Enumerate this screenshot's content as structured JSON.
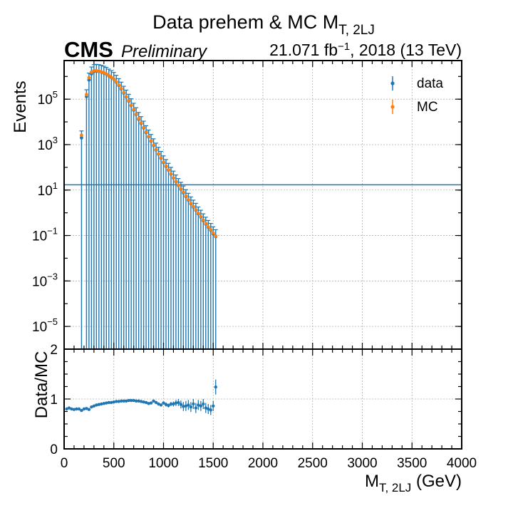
{
  "header": {
    "title_main": "Data prehem & MC M",
    "title_sub": "T, 2LJ",
    "experiment": "CMS",
    "status": "Preliminary",
    "lumi_value": "21.071 fb",
    "lumi_exp": "−1",
    "lumi_rest": ", 2018 (13 TeV)"
  },
  "axes": {
    "xlabel_main": "M",
    "xlabel_sub": "T, 2LJ",
    "xlabel_unit": " (GeV)",
    "ylabel_top": "Events",
    "ylabel_bottom": "Data/MC"
  },
  "legend": {
    "placement": "top-right",
    "entries": [
      {
        "label": "data",
        "color": "#1f77b4"
      },
      {
        "label": "MC",
        "color": "#ff7f0e"
      }
    ]
  },
  "colors": {
    "data": "#1f77b4",
    "mc": "#ff7f0e",
    "grid": "#b0b0b0"
  },
  "chart_data": [
    {
      "type": "scatter",
      "yscale": "log",
      "xlim": [
        0,
        4000
      ],
      "ylim": [
        1e-06,
        5000000
      ],
      "grid": true,
      "ylabel": "Events",
      "hline": 17,
      "x_ticks": [
        0,
        500,
        1000,
        1500,
        2000,
        2500,
        3000,
        3500,
        4000
      ],
      "y_ticks": [
        {
          "value": 100000,
          "base": "10",
          "exp": "5"
        },
        {
          "value": 1000,
          "base": "10",
          "exp": "3"
        },
        {
          "value": 10,
          "base": "10",
          "exp": "1"
        },
        {
          "value": 0.1,
          "base": "10",
          "exp": "−1"
        },
        {
          "value": 0.001,
          "base": "10",
          "exp": "−3"
        },
        {
          "value": 1e-05,
          "base": "10",
          "exp": "−5"
        }
      ],
      "series": [
        {
          "name": "data",
          "color": "#1f77b4",
          "points": [
            [
              175,
              2000,
              2000,
              2000
            ],
            [
              225,
              130000,
              130000,
              130000
            ],
            [
              250,
              700000,
              700000,
              700000
            ],
            [
              275,
              1300000,
              1300000,
              1300000
            ],
            [
              300,
              1650000,
              1650000,
              1650000
            ],
            [
              325,
              1700000,
              1700000,
              1700000
            ],
            [
              350,
              1650000,
              1650000,
              1650000
            ],
            [
              375,
              1550000,
              1550000,
              1550000
            ],
            [
              400,
              1400000,
              1400000,
              1400000
            ],
            [
              425,
              1250000,
              1250000,
              1250000
            ],
            [
              450,
              1050000,
              1050000,
              1050000
            ],
            [
              475,
              900000,
              900000,
              900000
            ],
            [
              500,
              750000,
              750000,
              750000
            ],
            [
              525,
              560000,
              560000,
              560000
            ],
            [
              550,
              400000,
              400000,
              400000
            ],
            [
              575,
              280000,
              280000,
              280000
            ],
            [
              600,
              185000,
              185000,
              185000
            ],
            [
              625,
              125000,
              125000,
              125000
            ],
            [
              650,
              82000,
              82000,
              82000
            ],
            [
              675,
              52000,
              52000,
              52000
            ],
            [
              700,
              33000,
              33000,
              33000
            ],
            [
              725,
              21000,
              21000,
              21000
            ],
            [
              750,
              13000,
              13000,
              13000
            ],
            [
              775,
              8500,
              8500,
              8500
            ],
            [
              800,
              5400,
              5400,
              5400
            ],
            [
              825,
              3400,
              3400,
              3400
            ],
            [
              850,
              2200,
              2200,
              2200
            ],
            [
              875,
              1400,
              1400,
              1400
            ],
            [
              900,
              900,
              900,
              900
            ],
            [
              925,
              580,
              580,
              580
            ],
            [
              950,
              380,
              380,
              380
            ],
            [
              975,
              250,
              250,
              250
            ],
            [
              1000,
              160,
              160,
              160
            ],
            [
              1025,
              110,
              110,
              110
            ],
            [
              1050,
              75,
              75,
              75
            ],
            [
              1075,
              50,
              50,
              50
            ],
            [
              1100,
              34,
              34,
              34
            ],
            [
              1125,
              23,
              23,
              23
            ],
            [
              1150,
              16,
              16,
              16
            ],
            [
              1175,
              11,
              11,
              11
            ],
            [
              1200,
              7.5,
              7.5,
              7.5
            ],
            [
              1225,
              5.2,
              5.2,
              5.2
            ],
            [
              1250,
              3.6,
              3.6,
              3.6
            ],
            [
              1275,
              2.5,
              2.5,
              2.5
            ],
            [
              1300,
              1.8,
              1.8,
              1.8
            ],
            [
              1325,
              1.3,
              1.3,
              1.3
            ],
            [
              1350,
              0.9,
              0.9,
              0.9
            ],
            [
              1375,
              0.65,
              0.65,
              0.65
            ],
            [
              1400,
              0.45,
              0.45,
              0.45
            ],
            [
              1425,
              0.32,
              0.32,
              0.32
            ],
            [
              1450,
              0.23,
              0.23,
              0.23
            ],
            [
              1475,
              0.17,
              0.17,
              0.17
            ],
            [
              1500,
              0.12,
              0.12,
              0.12
            ],
            [
              1525,
              0.09,
              0.09,
              0.09
            ]
          ]
        },
        {
          "name": "MC",
          "color": "#ff7f0e",
          "points": [
            [
              175,
              2600
            ],
            [
              225,
              160000
            ],
            [
              250,
              880000
            ],
            [
              275,
              1550000
            ],
            [
              300,
              1800000
            ],
            [
              325,
              1800000
            ],
            [
              350,
              1700000
            ],
            [
              375,
              1600000
            ],
            [
              400,
              1450000
            ],
            [
              425,
              1280000
            ],
            [
              450,
              1080000
            ],
            [
              475,
              920000
            ],
            [
              500,
              770000
            ],
            [
              525,
              580000
            ],
            [
              550,
              420000
            ],
            [
              575,
              295000
            ],
            [
              600,
              195000
            ],
            [
              625,
              130000
            ],
            [
              650,
              86000
            ],
            [
              675,
              54000
            ],
            [
              700,
              35000
            ],
            [
              725,
              22000
            ],
            [
              750,
              14000
            ],
            [
              775,
              9000
            ],
            [
              800,
              5700
            ],
            [
              825,
              3600
            ],
            [
              850,
              2300
            ],
            [
              875,
              1450
            ],
            [
              900,
              940
            ],
            [
              925,
              600
            ],
            [
              950,
              390
            ],
            [
              975,
              260
            ],
            [
              1000,
              170
            ],
            [
              1025,
              115
            ],
            [
              1050,
              78
            ],
            [
              1075,
              52
            ],
            [
              1100,
              35
            ],
            [
              1125,
              24
            ],
            [
              1150,
              16.5
            ],
            [
              1175,
              11.5
            ],
            [
              1200,
              8
            ],
            [
              1225,
              5.5
            ],
            [
              1250,
              3.8
            ],
            [
              1275,
              2.6
            ],
            [
              1300,
              1.9
            ],
            [
              1325,
              1.35
            ],
            [
              1350,
              0.95
            ],
            [
              1375,
              0.68
            ],
            [
              1400,
              0.48
            ],
            [
              1425,
              0.34
            ],
            [
              1450,
              0.24
            ],
            [
              1475,
              0.18
            ],
            [
              1500,
              0.13
            ],
            [
              1525,
              0.095
            ]
          ]
        }
      ]
    },
    {
      "type": "scatter",
      "xlim": [
        0,
        4000
      ],
      "ylim": [
        0,
        2
      ],
      "grid": true,
      "ylabel": "Data/MC",
      "y_ticks": [
        0,
        1,
        2
      ],
      "series": [
        {
          "name": "ratio",
          "color": "#1f77b4",
          "points": [
            [
              25,
              0.8,
              0.02
            ],
            [
              50,
              0.82,
              0.02
            ],
            [
              75,
              0.8,
              0.02
            ],
            [
              100,
              0.79,
              0.02
            ],
            [
              125,
              0.8,
              0.02
            ],
            [
              150,
              0.8,
              0.02
            ],
            [
              175,
              0.77,
              0.02
            ],
            [
              200,
              0.8,
              0.02
            ],
            [
              225,
              0.81,
              0.02
            ],
            [
              250,
              0.79,
              0.02
            ],
            [
              275,
              0.84,
              0.02
            ],
            [
              300,
              0.86,
              0.02
            ],
            [
              325,
              0.88,
              0.02
            ],
            [
              350,
              0.89,
              0.02
            ],
            [
              375,
              0.9,
              0.02
            ],
            [
              400,
              0.91,
              0.02
            ],
            [
              425,
              0.92,
              0.02
            ],
            [
              450,
              0.93,
              0.02
            ],
            [
              475,
              0.93,
              0.02
            ],
            [
              500,
              0.94,
              0.02
            ],
            [
              525,
              0.95,
              0.02
            ],
            [
              550,
              0.95,
              0.02
            ],
            [
              575,
              0.96,
              0.02
            ],
            [
              600,
              0.96,
              0.02
            ],
            [
              625,
              0.96,
              0.02
            ],
            [
              650,
              0.97,
              0.02
            ],
            [
              675,
              0.97,
              0.02
            ],
            [
              700,
              0.97,
              0.02
            ],
            [
              725,
              0.96,
              0.02
            ],
            [
              750,
              0.96,
              0.02
            ],
            [
              775,
              0.95,
              0.02
            ],
            [
              800,
              0.94,
              0.02
            ],
            [
              825,
              0.93,
              0.02
            ],
            [
              850,
              0.91,
              0.02
            ],
            [
              875,
              0.92,
              0.02
            ],
            [
              900,
              0.96,
              0.02
            ],
            [
              925,
              0.93,
              0.03
            ],
            [
              950,
              0.9,
              0.03
            ],
            [
              975,
              0.88,
              0.03
            ],
            [
              1000,
              0.92,
              0.03
            ],
            [
              1025,
              0.89,
              0.04
            ],
            [
              1050,
              0.87,
              0.04
            ],
            [
              1075,
              0.9,
              0.04
            ],
            [
              1100,
              0.9,
              0.05
            ],
            [
              1125,
              0.92,
              0.06
            ],
            [
              1150,
              0.93,
              0.07
            ],
            [
              1175,
              0.89,
              0.08
            ],
            [
              1200,
              0.85,
              0.09
            ],
            [
              1225,
              0.86,
              0.1
            ],
            [
              1250,
              0.88,
              0.1
            ],
            [
              1275,
              0.84,
              0.1
            ],
            [
              1300,
              0.9,
              0.1
            ],
            [
              1325,
              0.82,
              0.1
            ],
            [
              1350,
              0.88,
              0.1
            ],
            [
              1375,
              0.86,
              0.1
            ],
            [
              1400,
              0.9,
              0.1
            ],
            [
              1425,
              0.82,
              0.1
            ],
            [
              1450,
              0.8,
              0.1
            ],
            [
              1475,
              0.78,
              0.1
            ],
            [
              1500,
              0.86,
              0.1
            ],
            [
              1525,
              1.24,
              0.15
            ]
          ]
        }
      ]
    }
  ]
}
